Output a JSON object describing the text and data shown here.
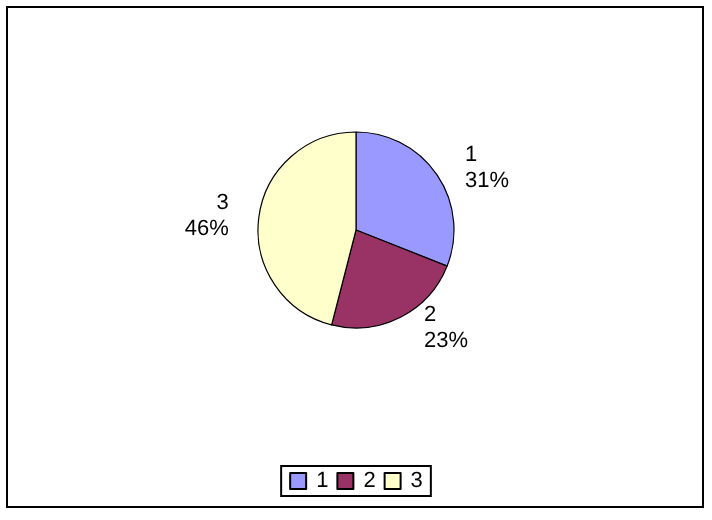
{
  "chart_data": {
    "type": "pie",
    "categories": [
      "1",
      "2",
      "3"
    ],
    "values": [
      31,
      23,
      46
    ],
    "colors": [
      "#9999ff",
      "#993366",
      "#ffffcc"
    ],
    "value_labels": [
      "31%",
      "23%",
      "46%"
    ],
    "legend": "bottom"
  }
}
